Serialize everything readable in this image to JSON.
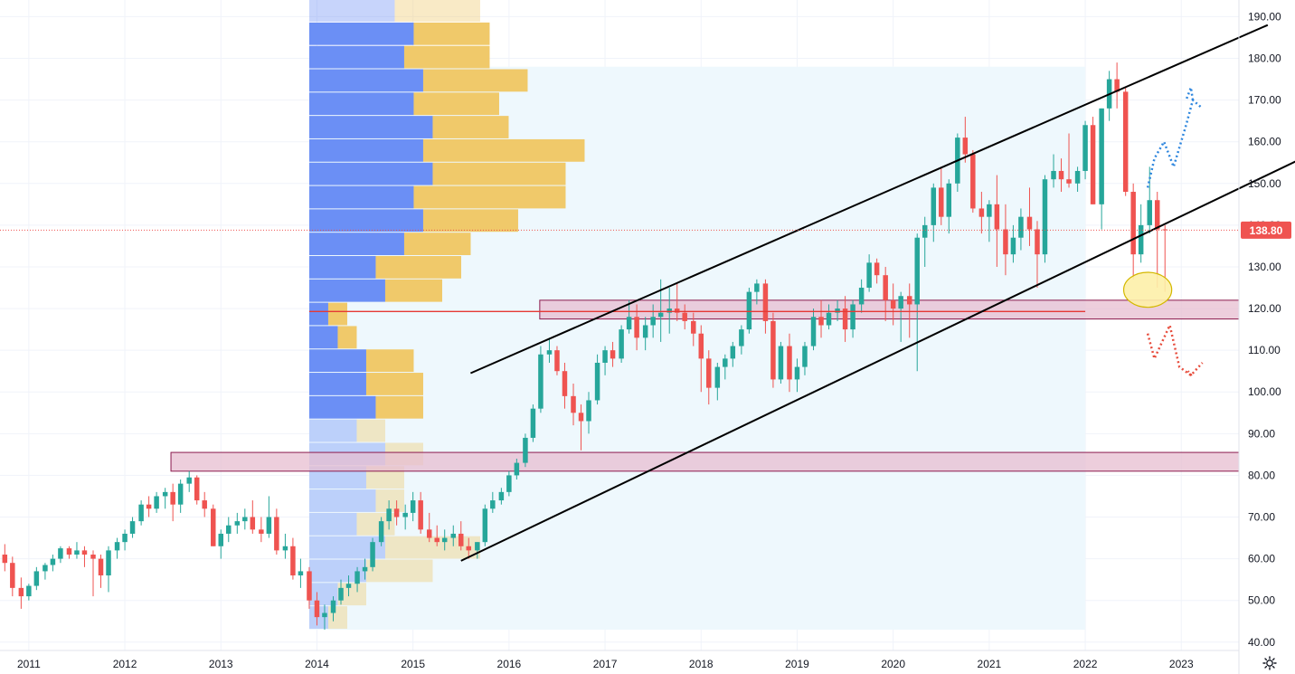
{
  "chart_data": {
    "type": "candlestick",
    "y_ticks": [
      "40.00",
      "50.00",
      "60.00",
      "70.00",
      "80.00",
      "90.00",
      "100.00",
      "110.00",
      "120.00",
      "130.00",
      "140.00",
      "150.00",
      "160.00",
      "170.00",
      "180.00",
      "190.00"
    ],
    "ylim": [
      38,
      194
    ],
    "x_ticks": [
      "2011",
      "2012",
      "2013",
      "2014",
      "2015",
      "2016",
      "2017",
      "2018",
      "2019",
      "2020",
      "2021",
      "2022",
      "2023"
    ],
    "xlim": [
      2010.7,
      2023.6
    ],
    "last_price": "138.80",
    "colors": {
      "up": "#26a69a",
      "down": "#ef5350",
      "channel": "#000000",
      "zone_fill": "#e7bdd0",
      "zone_stroke": "#8b1a4d",
      "highlight_fill": "#fdf0a8",
      "highlight_stroke": "#d4b800",
      "vp_up": "#6b8ff5",
      "vp_down": "#f0c96a",
      "vp_area": "#eef8fd",
      "forecast_up": "#2e86de",
      "forecast_down": "#e74c3c",
      "poc_line": "#e53935"
    },
    "candles": [
      [
        2010.75,
        61,
        63.5,
        57,
        59
      ],
      [
        2010.83,
        59,
        60.5,
        51,
        53
      ],
      [
        2010.92,
        53,
        55.5,
        48,
        51
      ],
      [
        2011.0,
        51,
        54,
        50,
        53.5
      ],
      [
        2011.08,
        53.5,
        58,
        52.5,
        57
      ],
      [
        2011.17,
        57,
        59,
        55,
        58.5
      ],
      [
        2011.25,
        58.5,
        61,
        57,
        60
      ],
      [
        2011.33,
        60,
        63,
        59,
        62.5
      ],
      [
        2011.42,
        62.5,
        63,
        60,
        61
      ],
      [
        2011.5,
        61,
        64,
        60,
        62
      ],
      [
        2011.58,
        62,
        63,
        58,
        61
      ],
      [
        2011.67,
        61,
        62,
        51,
        60
      ],
      [
        2011.75,
        60,
        61,
        53,
        56
      ],
      [
        2011.83,
        56,
        63,
        52,
        62
      ],
      [
        2011.92,
        62,
        65,
        60,
        64
      ],
      [
        2012.0,
        64,
        67,
        62,
        66
      ],
      [
        2012.08,
        66,
        70,
        65,
        69
      ],
      [
        2012.17,
        69,
        74,
        68,
        73
      ],
      [
        2012.25,
        73,
        75,
        70,
        72
      ],
      [
        2012.33,
        72,
        76,
        71,
        75
      ],
      [
        2012.42,
        75,
        77,
        72,
        76
      ],
      [
        2012.5,
        76,
        78,
        69,
        73
      ],
      [
        2012.58,
        73,
        79,
        71,
        78
      ],
      [
        2012.67,
        78,
        81,
        76,
        79.5
      ],
      [
        2012.75,
        79.5,
        80,
        73,
        74
      ],
      [
        2012.83,
        74,
        76,
        70,
        72
      ],
      [
        2012.92,
        72,
        73,
        63,
        63
      ],
      [
        2013.0,
        63,
        67,
        60,
        66
      ],
      [
        2013.08,
        66,
        70,
        64,
        68
      ],
      [
        2013.17,
        68,
        71,
        66,
        69
      ],
      [
        2013.25,
        69,
        72,
        67,
        70
      ],
      [
        2013.33,
        70,
        74,
        66,
        67
      ],
      [
        2013.42,
        67,
        70,
        64,
        66
      ],
      [
        2013.5,
        66,
        75,
        65,
        70
      ],
      [
        2013.58,
        70,
        72,
        61,
        62
      ],
      [
        2013.67,
        62,
        66,
        60,
        63
      ],
      [
        2013.75,
        63,
        65,
        55,
        56
      ],
      [
        2013.83,
        56,
        60,
        53,
        57
      ],
      [
        2013.92,
        57,
        58,
        48,
        50
      ],
      [
        2014.0,
        50,
        52,
        44,
        46
      ],
      [
        2014.08,
        46,
        49,
        43,
        47
      ],
      [
        2014.17,
        47,
        51,
        45,
        50
      ],
      [
        2014.25,
        50,
        55,
        49,
        53
      ],
      [
        2014.33,
        53,
        56,
        51,
        54
      ],
      [
        2014.42,
        54,
        58,
        52,
        57
      ],
      [
        2014.5,
        57,
        60,
        55,
        58
      ],
      [
        2014.58,
        58,
        65,
        57,
        64
      ],
      [
        2014.67,
        64,
        70,
        63,
        69
      ],
      [
        2014.75,
        69,
        74,
        67,
        72
      ],
      [
        2014.83,
        72,
        74,
        68,
        70
      ],
      [
        2014.92,
        70,
        73,
        67,
        71
      ],
      [
        2015.0,
        71,
        76,
        69,
        74
      ],
      [
        2015.08,
        74,
        76,
        66,
        67
      ],
      [
        2015.17,
        67,
        71,
        64,
        65
      ],
      [
        2015.25,
        65,
        68,
        63,
        64
      ],
      [
        2015.33,
        64,
        67,
        62,
        65
      ],
      [
        2015.42,
        65,
        68,
        63,
        66
      ],
      [
        2015.5,
        66,
        69,
        62,
        63
      ],
      [
        2015.58,
        63,
        65,
        60,
        62
      ],
      [
        2015.67,
        62,
        64,
        60,
        64
      ],
      [
        2015.75,
        64,
        73,
        63,
        72
      ],
      [
        2015.83,
        72,
        76,
        71,
        74
      ],
      [
        2015.92,
        74,
        77,
        73,
        76
      ],
      [
        2016.0,
        76,
        81,
        75,
        80
      ],
      [
        2016.08,
        80,
        84,
        79,
        83
      ],
      [
        2016.17,
        83,
        90,
        82,
        89
      ],
      [
        2016.25,
        89,
        97,
        88,
        96
      ],
      [
        2016.33,
        96,
        111,
        95,
        109
      ],
      [
        2016.42,
        109,
        113,
        107,
        110
      ],
      [
        2016.5,
        110,
        111,
        104,
        105
      ],
      [
        2016.58,
        105,
        107,
        96,
        99
      ],
      [
        2016.67,
        99,
        102,
        92,
        95
      ],
      [
        2016.75,
        95,
        97,
        86,
        93
      ],
      [
        2016.83,
        93,
        100,
        90,
        98
      ],
      [
        2016.92,
        98,
        109,
        97,
        107
      ],
      [
        2017.0,
        107,
        111,
        104,
        110
      ],
      [
        2017.08,
        110,
        112,
        106,
        108
      ],
      [
        2017.17,
        108,
        116,
        107,
        115
      ],
      [
        2017.25,
        115,
        122,
        114,
        118
      ],
      [
        2017.33,
        118,
        121,
        110,
        113
      ],
      [
        2017.42,
        113,
        118,
        110,
        116
      ],
      [
        2017.5,
        116,
        121,
        113,
        118
      ],
      [
        2017.58,
        118,
        127,
        112,
        119
      ],
      [
        2017.67,
        119,
        125,
        114,
        120
      ],
      [
        2017.75,
        120,
        126,
        117,
        119
      ],
      [
        2017.83,
        119,
        121,
        115,
        117
      ],
      [
        2017.92,
        117,
        119,
        111,
        114
      ],
      [
        2018.0,
        114,
        116,
        100,
        108
      ],
      [
        2018.08,
        108,
        110,
        97,
        101
      ],
      [
        2018.17,
        101,
        107,
        98,
        106
      ],
      [
        2018.25,
        106,
        109,
        103,
        108
      ],
      [
        2018.33,
        108,
        112,
        106,
        111
      ],
      [
        2018.42,
        111,
        116,
        109,
        115
      ],
      [
        2018.5,
        115,
        125,
        114,
        124
      ],
      [
        2018.58,
        124,
        127,
        121,
        126
      ],
      [
        2018.67,
        126,
        127,
        114,
        117
      ],
      [
        2018.75,
        117,
        119,
        101,
        103
      ],
      [
        2018.83,
        103,
        112,
        102,
        111
      ],
      [
        2018.92,
        111,
        114,
        100,
        103
      ],
      [
        2019.0,
        103,
        108,
        100,
        106
      ],
      [
        2019.08,
        106,
        112,
        104,
        111
      ],
      [
        2019.17,
        111,
        120,
        110,
        118
      ],
      [
        2019.25,
        118,
        122,
        113,
        116
      ],
      [
        2019.33,
        116,
        121,
        115,
        119
      ],
      [
        2019.42,
        119,
        122,
        117,
        120
      ],
      [
        2019.5,
        120,
        123,
        112,
        115
      ],
      [
        2019.58,
        115,
        122,
        113,
        121
      ],
      [
        2019.67,
        121,
        127,
        119,
        125
      ],
      [
        2019.75,
        125,
        133,
        124,
        131
      ],
      [
        2019.83,
        131,
        132,
        126,
        128
      ],
      [
        2019.92,
        128,
        130,
        117,
        122
      ],
      [
        2020.0,
        122,
        126,
        116,
        120
      ],
      [
        2020.08,
        120,
        124,
        112,
        123
      ],
      [
        2020.17,
        123,
        126,
        113,
        121
      ],
      [
        2020.25,
        121,
        138,
        105,
        137
      ],
      [
        2020.33,
        137,
        142,
        130,
        140
      ],
      [
        2020.42,
        140,
        150,
        136,
        149
      ],
      [
        2020.5,
        149,
        154,
        140,
        142
      ],
      [
        2020.58,
        142,
        151,
        138,
        150
      ],
      [
        2020.67,
        150,
        162,
        148,
        161
      ],
      [
        2020.75,
        161,
        166,
        155,
        157
      ],
      [
        2020.83,
        157,
        158,
        143,
        144
      ],
      [
        2020.92,
        144,
        148,
        138,
        142
      ],
      [
        2021.0,
        142,
        146,
        136,
        145
      ],
      [
        2021.08,
        145,
        152,
        130,
        139
      ],
      [
        2021.17,
        139,
        145,
        128,
        133
      ],
      [
        2021.25,
        133,
        140,
        131,
        137
      ],
      [
        2021.33,
        137,
        144,
        134,
        142
      ],
      [
        2021.42,
        142,
        149,
        135,
        139
      ],
      [
        2021.5,
        139,
        141,
        125,
        133
      ],
      [
        2021.58,
        133,
        152,
        131,
        151
      ],
      [
        2021.67,
        151,
        157,
        149,
        153
      ],
      [
        2021.75,
        153,
        156,
        148,
        151
      ],
      [
        2021.83,
        151,
        162,
        149,
        150
      ],
      [
        2021.92,
        150,
        154,
        148,
        153
      ],
      [
        2022.0,
        153,
        165,
        151,
        164
      ],
      [
        2022.08,
        164,
        166,
        145,
        145
      ],
      [
        2022.17,
        145,
        168,
        139,
        168
      ],
      [
        2022.25,
        168,
        177,
        165,
        175
      ],
      [
        2022.33,
        175,
        179,
        168,
        172
      ],
      [
        2022.42,
        172,
        173,
        147,
        148
      ],
      [
        2022.5,
        148,
        150,
        127,
        133
      ],
      [
        2022.58,
        133,
        145,
        131,
        140
      ],
      [
        2022.67,
        140,
        154,
        138,
        146
      ],
      [
        2022.75,
        146,
        148,
        125,
        139
      ],
      [
        2022.83,
        139,
        140,
        124,
        138.8
      ]
    ],
    "volume_profile": {
      "y_start": 43,
      "bin_size": 5.6,
      "up": [
        2,
        3,
        6,
        8,
        5,
        7,
        6,
        8,
        5,
        7,
        6,
        6,
        3,
        2,
        8,
        7,
        10,
        12,
        11,
        13,
        12,
        13,
        11,
        12,
        10,
        11,
        9,
        7,
        5,
        3,
        1
      ],
      "down": [
        2,
        3,
        7,
        10,
        4,
        3,
        4,
        4,
        3,
        5,
        6,
        5,
        2,
        2,
        6,
        9,
        7,
        10,
        16,
        14,
        17,
        8,
        9,
        11,
        9,
        8,
        9,
        8,
        5,
        3,
        1
      ]
    },
    "channel_lines": [
      {
        "x1": 2015.5,
        "y1": 59.5,
        "x2": 2024.3,
        "y2": 156.5
      },
      {
        "x1": 2015.6,
        "y1": 104.5,
        "x2": 2023.9,
        "y2": 188
      }
    ],
    "zones": [
      {
        "x1": 2012.48,
        "x2": 2023.6,
        "y1": 81,
        "y2": 85.5
      },
      {
        "x1": 2016.32,
        "x2": 2023.6,
        "y1": 117.5,
        "y2": 122
      }
    ],
    "poc_line": {
      "x1": 2013.92,
      "x2": 2022.0,
      "y": 119.3
    },
    "vp_range": {
      "x1": 2013.92,
      "x2": 2022.0,
      "y1": 43,
      "y2": 178
    },
    "highlight_ellipse": {
      "cx": 2022.65,
      "cy": 124.5,
      "rx": 0.25,
      "ry": 4.2
    },
    "forecast_up": [
      [
        2022.65,
        149
      ],
      [
        2022.72,
        156
      ],
      [
        2022.82,
        160
      ],
      [
        2022.92,
        154
      ],
      [
        2023.05,
        164
      ],
      [
        2023.12,
        170
      ],
      [
        2023.22,
        168
      ]
    ],
    "forecast_up_arrow": [
      [
        2023.1,
        173
      ],
      [
        2023.05,
        170
      ]
    ],
    "forecast_down": [
      [
        2022.65,
        114
      ],
      [
        2022.72,
        108
      ],
      [
        2022.8,
        112
      ],
      [
        2022.88,
        116
      ],
      [
        2022.98,
        106
      ],
      [
        2023.1,
        104
      ],
      [
        2023.22,
        107
      ]
    ],
    "forecast_down_arrow": [
      [
        2023.07,
        105
      ],
      [
        2023.12,
        103.5
      ]
    ]
  }
}
